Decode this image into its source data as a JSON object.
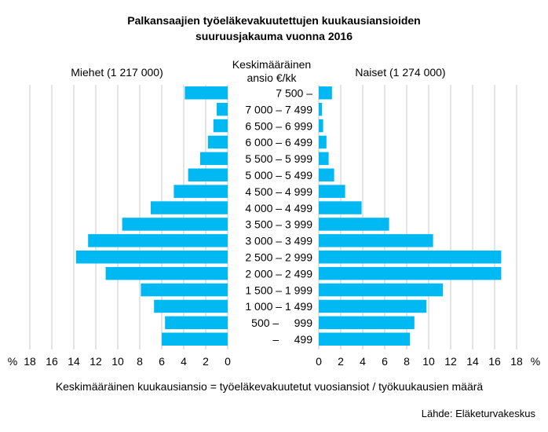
{
  "title_line1": "Palkansaajien työeläkevakuutettujen kuukausiansioiden",
  "title_line2": "suuruusjakauma vuonna 2016",
  "center_header_line1": "Keskimääräinen",
  "center_header_line2": "ansio €/kk",
  "percent_symbol": "%",
  "footnote": "Keskimääräinen kuukausiansio = työeläkevakuutetut vuosiansiot / työkuukausien määrä",
  "source": "Lähde: Eläketurvakeskus",
  "colors": {
    "bar": "#00B9F2",
    "grid": "#c8c8c8",
    "text": "#000000"
  },
  "chart_data": {
    "type": "bar",
    "orientation": "horizontal",
    "title": "Palkansaajien työeläkevakuutettujen kuukausiansioiden suuruusjakauma vuonna 2016",
    "categories": [
      "7 500 –",
      "7 000 – 7 499",
      "6 500 – 6 999",
      "6 000 – 6 499",
      "5 500 – 5 999",
      "5 000 – 5 499",
      "4 500 – 4 999",
      "4 000 – 4 499",
      "3 500 – 3 999",
      "3 000 – 3 499",
      "2 500 – 2 999",
      "2 000 – 2 499",
      "1 500 – 1 999",
      "1 000 – 1 499",
      "500 –     999",
      "–     499"
    ],
    "series": [
      {
        "name": "Miehet (1 217 000)",
        "side": "left",
        "values": [
          3.9,
          1.0,
          1.3,
          1.8,
          2.5,
          3.6,
          4.9,
          7.0,
          9.6,
          12.7,
          13.8,
          11.1,
          7.9,
          6.7,
          5.7,
          6.0
        ]
      },
      {
        "name": "Naiset (1 274 000)",
        "side": "right",
        "values": [
          1.2,
          0.3,
          0.4,
          0.7,
          0.9,
          1.4,
          2.4,
          3.9,
          6.4,
          10.4,
          16.6,
          16.6,
          11.3,
          9.8,
          8.7,
          8.3
        ]
      }
    ],
    "x_ticks_left": [
      "18",
      "16",
      "14",
      "12",
      "10",
      "8",
      "6",
      "4",
      "2",
      "0"
    ],
    "x_ticks_right": [
      "0",
      "2",
      "4",
      "6",
      "8",
      "10",
      "12",
      "14",
      "16",
      "18"
    ],
    "xlim": [
      0,
      18
    ],
    "xlabel": "%",
    "grid": "vertical"
  }
}
